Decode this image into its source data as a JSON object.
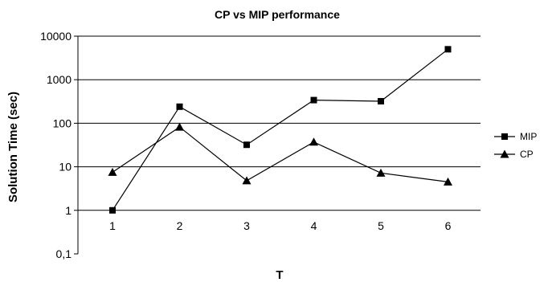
{
  "chart_data": {
    "type": "line",
    "title": "CP vs MIP performance",
    "xlabel": "T",
    "ylabel": "Solution Time (sec)",
    "yscale": "log",
    "ylim": [
      0.1,
      10000
    ],
    "y_ticks": [
      "0,1",
      "1",
      "10",
      "100",
      "1000",
      "10000"
    ],
    "x": [
      1,
      2,
      3,
      4,
      5,
      6
    ],
    "x_ticks": [
      "1",
      "2",
      "3",
      "4",
      "5",
      "6"
    ],
    "grid": "horizontal major lines at 1, 10, 100, 1000, 10000",
    "legend_position": "right",
    "series": [
      {
        "name": "MIP",
        "marker": "square",
        "color": "#000000",
        "values": [
          1,
          240,
          32,
          340,
          320,
          5000
        ]
      },
      {
        "name": "CP",
        "marker": "triangle",
        "color": "#000000",
        "values": [
          7.5,
          82,
          4.8,
          37,
          7.2,
          4.5
        ]
      }
    ]
  }
}
